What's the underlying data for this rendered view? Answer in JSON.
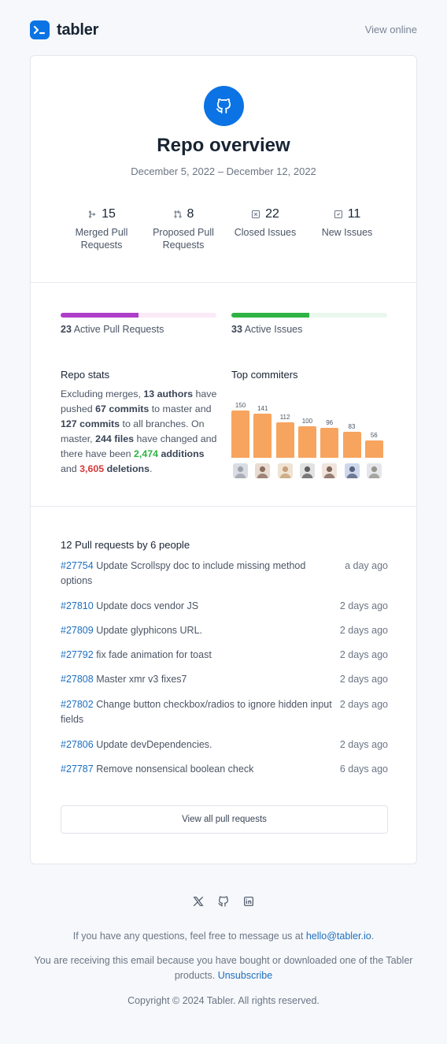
{
  "brand": {
    "name": "tabler",
    "accent": "#0b73e4"
  },
  "header": {
    "view_online": "View online"
  },
  "overview": {
    "title": "Repo overview",
    "date_range": "December 5, 2022 – December 12, 2022",
    "stats": [
      {
        "icon": "git-merge-icon",
        "value": "15",
        "label": "Merged Pull Requests"
      },
      {
        "icon": "git-pull-request-icon",
        "value": "8",
        "label": "Proposed Pull Requests"
      },
      {
        "icon": "square-x-icon",
        "value": "22",
        "label": "Closed Issues"
      },
      {
        "icon": "square-check-icon",
        "value": "11",
        "label": "New Issues"
      }
    ]
  },
  "progress": {
    "pull_requests": {
      "count": "23",
      "label": "Active Pull Requests",
      "fraction": 0.5,
      "color": "#ae3ec9",
      "track": "#fbeaf8"
    },
    "issues": {
      "count": "33",
      "label": "Active Issues",
      "fraction": 0.5,
      "color": "#2fb344",
      "track": "#e9f7ec"
    }
  },
  "repo_stats": {
    "title": "Repo stats",
    "t1": "Excluding merges, ",
    "authors": "13 authors",
    "t2": " have pushed ",
    "commits_master": "67 commits",
    "t3": " to master and ",
    "commits_all": "127 commits",
    "t4": " to all branches. On master, ",
    "files": "244 files",
    "t5": " have changed and there have been ",
    "additions": "2,474",
    "t6": " additions",
    "t7": " and ",
    "deletions": "3,605",
    "t8": " deletions",
    "t9": "."
  },
  "top_committers": {
    "title": "Top commiters",
    "bar_color": "#f7a45e"
  },
  "chart_data": {
    "type": "bar",
    "categories": [
      "",
      "",
      "",
      "",
      "",
      "",
      ""
    ],
    "values": [
      150,
      141,
      112,
      100,
      96,
      83,
      56
    ],
    "ylim": [
      0,
      150
    ]
  },
  "pull_requests": {
    "heading": "12 Pull requests by 6 people",
    "items": [
      {
        "number": "#27754",
        "title": " Update Scrollspy doc to include missing method options",
        "time": "a day ago"
      },
      {
        "number": "#27810",
        "title": " Update docs vendor JS",
        "time": "2 days ago"
      },
      {
        "number": "#27809",
        "title": " Update glyphicons URL.",
        "time": "2 days ago"
      },
      {
        "number": "#27792",
        "title": " fix fade animation for toast",
        "time": "2 days ago"
      },
      {
        "number": "#27808",
        "title": " Master xmr v3 fixes7",
        "time": "2 days ago"
      },
      {
        "number": "#27802",
        "title": " Change button checkbox/radios to ignore hidden input fields",
        "time": "2 days ago"
      },
      {
        "number": "#27806",
        "title": " Update devDependencies.",
        "time": "2 days ago"
      },
      {
        "number": "#27787",
        "title": " Remove nonsensical boolean check",
        "time": "6 days ago"
      }
    ],
    "view_all": "View all pull requests"
  },
  "footer": {
    "social_icons": [
      "x-icon",
      "github-icon",
      "linkedin-icon"
    ],
    "questions_text": "If you have any questions, feel free to message us at ",
    "email": "hello@tabler.io",
    "questions_end": ".",
    "receiving_text": "You are receiving this email because you have bought or downloaded one of the Tabler products. ",
    "unsubscribe": "Unsubscribe",
    "copyright": "Copyright © 2024 Tabler. All rights reserved."
  }
}
